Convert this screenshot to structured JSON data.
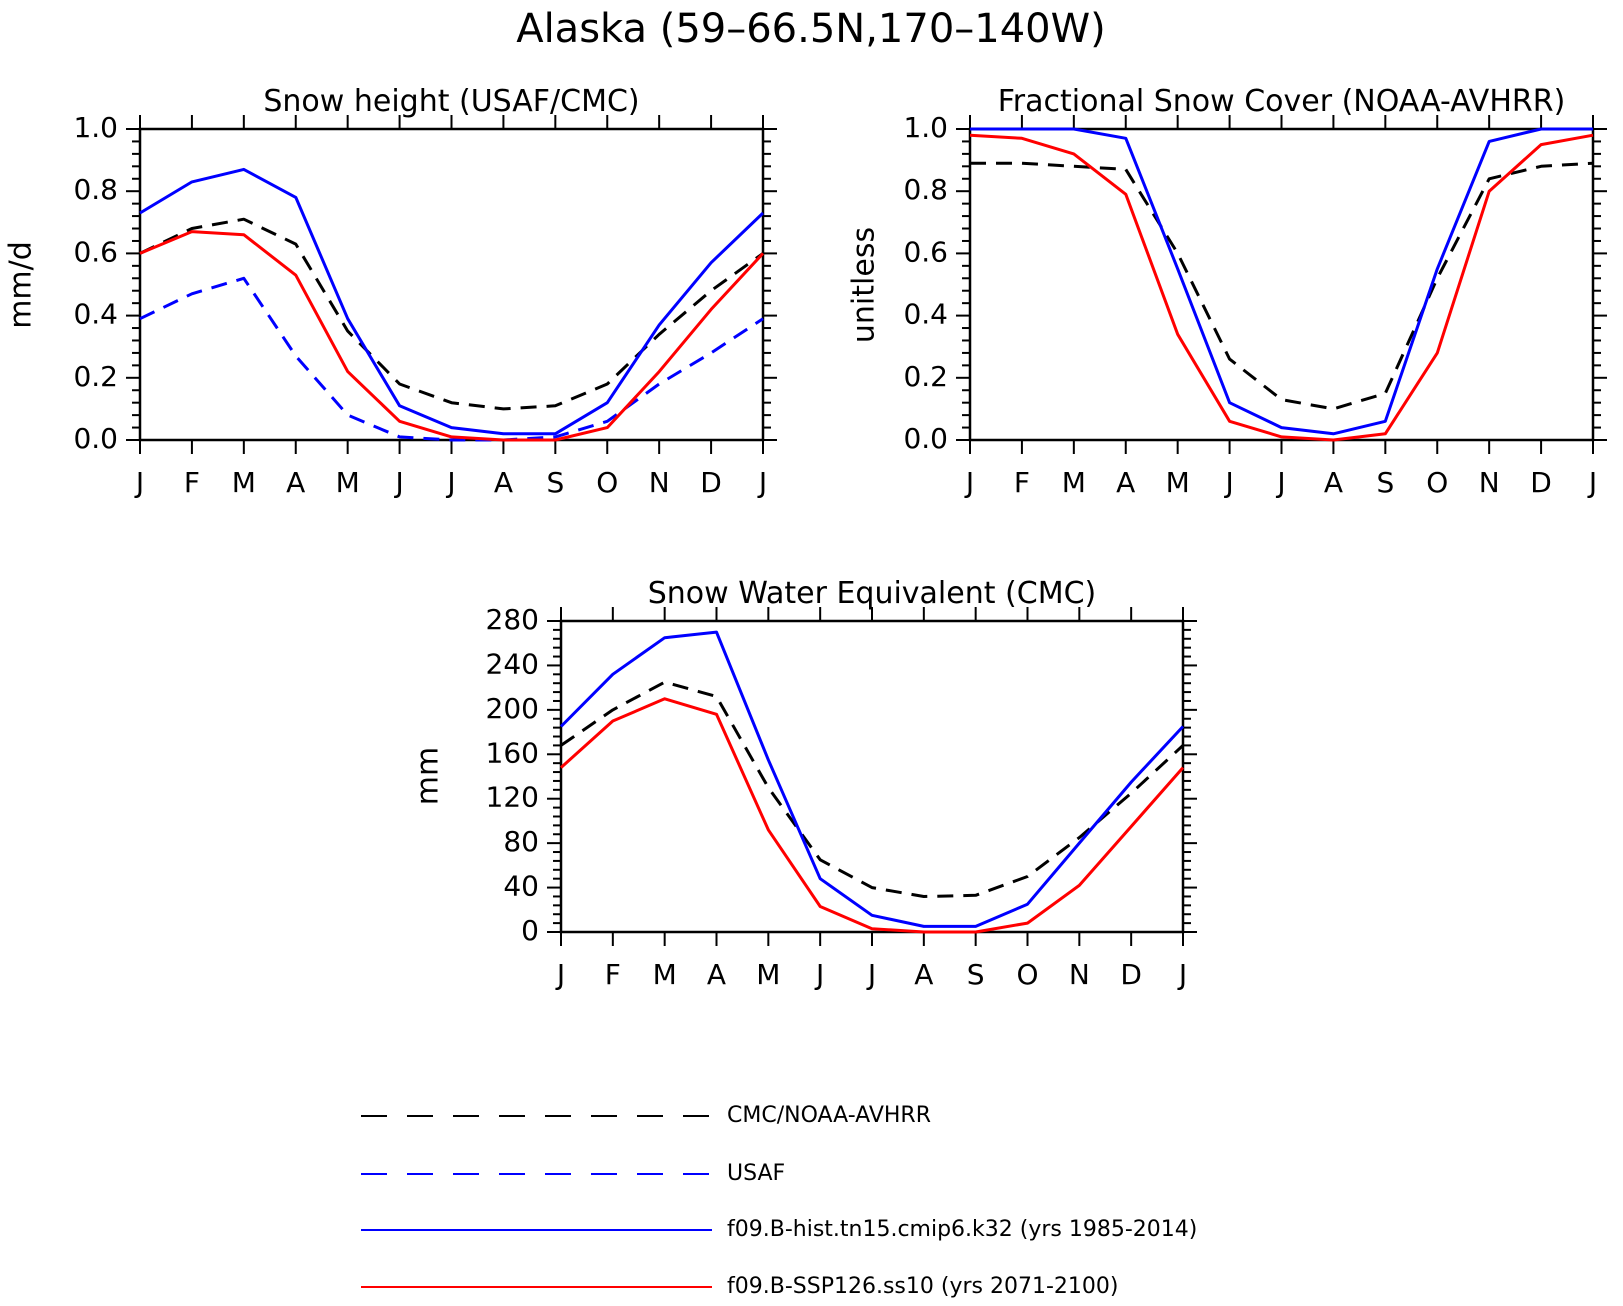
{
  "figure_title": "Alaska (59–66.5N,170–140W)",
  "month_labels": [
    "J",
    "F",
    "M",
    "A",
    "M",
    "J",
    "J",
    "A",
    "S",
    "O",
    "N",
    "D",
    "J"
  ],
  "legend": [
    {
      "label": "CMC/NOAA-AVHRR",
      "color": "#000000",
      "dashed": true
    },
    {
      "label": "USAF",
      "color": "#0000ff",
      "dashed": true
    },
    {
      "label": "f09.B-hist.tn15.cmip6.k32 (yrs 1985-2014)",
      "color": "#0000ff",
      "dashed": false
    },
    {
      "label": "f09.B-SSP126.ss10 (yrs 2071-2100)",
      "color": "#ff0000",
      "dashed": false
    }
  ],
  "chart_data": [
    {
      "type": "line",
      "title": "Snow height (USAF/CMC)",
      "ylabel": "mm/d",
      "xlabel": "",
      "ylim": [
        0,
        1.0
      ],
      "yticks": [
        "0.0",
        "0.2",
        "0.4",
        "0.6",
        "0.8",
        "1.0"
      ],
      "x": [
        "J",
        "F",
        "M",
        "A",
        "M",
        "J",
        "J",
        "A",
        "S",
        "O",
        "N",
        "D",
        "J"
      ],
      "series": [
        {
          "name": "CMC/NOAA-AVHRR",
          "color": "#000000",
          "dashed": true,
          "values": [
            0.6,
            0.68,
            0.71,
            0.63,
            0.35,
            0.18,
            0.12,
            0.1,
            0.11,
            0.18,
            0.34,
            0.48,
            0.6
          ]
        },
        {
          "name": "USAF",
          "color": "#0000ff",
          "dashed": true,
          "values": [
            0.39,
            0.47,
            0.52,
            0.27,
            0.08,
            0.01,
            0.0,
            0.0,
            0.01,
            0.06,
            0.18,
            0.28,
            0.39
          ]
        },
        {
          "name": "f09.B-hist.tn15.cmip6.k32 (yrs 1985-2014)",
          "color": "#0000ff",
          "dashed": false,
          "values": [
            0.73,
            0.83,
            0.87,
            0.78,
            0.39,
            0.11,
            0.04,
            0.02,
            0.02,
            0.12,
            0.37,
            0.57,
            0.73
          ]
        },
        {
          "name": "f09.B-SSP126.ss10 (yrs 2071-2100)",
          "color": "#ff0000",
          "dashed": false,
          "values": [
            0.6,
            0.67,
            0.66,
            0.53,
            0.22,
            0.06,
            0.01,
            0.0,
            0.0,
            0.04,
            0.22,
            0.42,
            0.6
          ]
        }
      ]
    },
    {
      "type": "line",
      "title": "Fractional Snow Cover (NOAA-AVHRR)",
      "ylabel": "unitless",
      "xlabel": "",
      "ylim": [
        0,
        1.0
      ],
      "yticks": [
        "0.0",
        "0.2",
        "0.4",
        "0.6",
        "0.8",
        "1.0"
      ],
      "x": [
        "J",
        "F",
        "M",
        "A",
        "M",
        "J",
        "J",
        "A",
        "S",
        "O",
        "N",
        "D",
        "J"
      ],
      "series": [
        {
          "name": "CMC/NOAA-AVHRR",
          "color": "#000000",
          "dashed": true,
          "values": [
            0.89,
            0.89,
            0.88,
            0.87,
            0.6,
            0.26,
            0.13,
            0.1,
            0.15,
            0.52,
            0.84,
            0.88,
            0.89
          ]
        },
        {
          "name": "f09.B-hist.tn15.cmip6.k32 (yrs 1985-2014)",
          "color": "#0000ff",
          "dashed": false,
          "values": [
            1.0,
            1.0,
            1.0,
            0.97,
            0.55,
            0.12,
            0.04,
            0.02,
            0.06,
            0.55,
            0.96,
            1.0,
            1.0
          ]
        },
        {
          "name": "f09.B-SSP126.ss10 (yrs 2071-2100)",
          "color": "#ff0000",
          "dashed": false,
          "values": [
            0.98,
            0.97,
            0.92,
            0.79,
            0.34,
            0.06,
            0.01,
            0.0,
            0.02,
            0.28,
            0.8,
            0.95,
            0.98
          ]
        }
      ]
    },
    {
      "type": "line",
      "title": "Snow Water Equivalent (CMC)",
      "ylabel": "mm",
      "xlabel": "",
      "ylim": [
        0,
        280
      ],
      "yticks": [
        "0",
        "40",
        "80",
        "120",
        "160",
        "200",
        "240",
        "280"
      ],
      "x": [
        "J",
        "F",
        "M",
        "A",
        "M",
        "J",
        "J",
        "A",
        "S",
        "O",
        "N",
        "D",
        "J"
      ],
      "series": [
        {
          "name": "CMC/NOAA-AVHRR",
          "color": "#000000",
          "dashed": true,
          "values": [
            168,
            200,
            225,
            212,
            130,
            65,
            40,
            32,
            33,
            50,
            85,
            125,
            168
          ]
        },
        {
          "name": "f09.B-hist.tn15.cmip6.k32 (yrs 1985-2014)",
          "color": "#0000ff",
          "dashed": false,
          "values": [
            185,
            232,
            265,
            270,
            155,
            48,
            15,
            5,
            5,
            25,
            80,
            135,
            185
          ]
        },
        {
          "name": "f09.B-SSP126.ss10 (yrs 2071-2100)",
          "color": "#ff0000",
          "dashed": false,
          "values": [
            148,
            190,
            210,
            196,
            92,
            23,
            3,
            0,
            0,
            8,
            42,
            95,
            148
          ]
        }
      ]
    }
  ]
}
